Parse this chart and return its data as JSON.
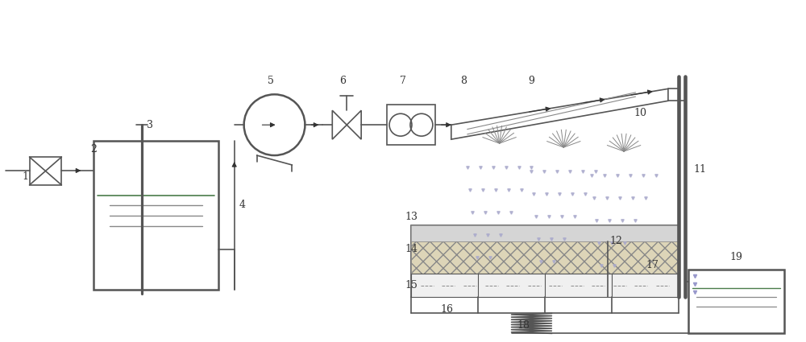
{
  "bg_color": "#ffffff",
  "line_color": "#555555",
  "dark_color": "#333333",
  "green_color": "#4a7c4a",
  "label_fontsize": 9,
  "fig_w": 10.0,
  "fig_h": 4.25
}
